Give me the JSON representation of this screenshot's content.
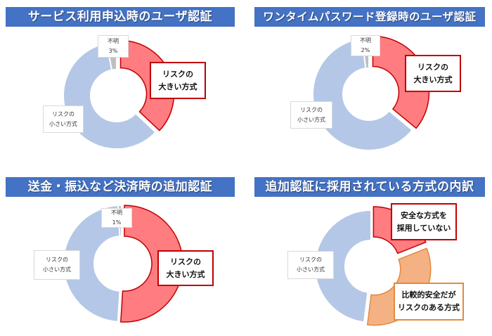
{
  "chart_data": [
    {
      "type": "pie",
      "subtype": "donut",
      "title": "サービス利用申込時のユーザ認証",
      "categories": [
        "リスクの大きい方式",
        "リスクの小さい方式",
        "不明"
      ],
      "values": [
        37,
        60,
        3
      ],
      "colors": [
        "#ff7c80",
        "#b4c7e7",
        "#bfbfbf"
      ],
      "labels": {
        "big": [
          "リスクの",
          "大きい方式"
        ],
        "small": [
          "リスクの",
          "小さい方式"
        ],
        "unknown": [
          "不明",
          "3%"
        ]
      }
    },
    {
      "type": "pie",
      "subtype": "donut",
      "title": "ワンタイムパスワード登録時のユーザ認証",
      "categories": [
        "リスクの大きい方式",
        "リスクの小さい方式",
        "不明"
      ],
      "values": [
        36,
        62,
        2
      ],
      "colors": [
        "#ff7c80",
        "#b4c7e7",
        "#bfbfbf"
      ],
      "labels": {
        "big": [
          "リスクの",
          "大きい方式"
        ],
        "small": [
          "リスクの",
          "小さい方式"
        ],
        "unknown": [
          "不明",
          "2%"
        ]
      }
    },
    {
      "type": "pie",
      "subtype": "donut",
      "title": "送金・振込など決済時の追加認証",
      "categories": [
        "リスクの大きい方式",
        "リスクの小さい方式",
        "不明"
      ],
      "values": [
        51,
        48,
        1
      ],
      "colors": [
        "#ff7c80",
        "#b4c7e7",
        "#bfbfbf"
      ],
      "labels": {
        "big": [
          "リスクの",
          "大きい方式"
        ],
        "small": [
          "リスクの",
          "小さい方式"
        ],
        "unknown": [
          "不明",
          "1%"
        ]
      }
    },
    {
      "type": "pie",
      "subtype": "donut",
      "title": "追加認証に採用されている方式の内訳",
      "categories": [
        "安全な方式を採用していない",
        "比較的安全だがリスクのある方式",
        "リスクの小さい方式"
      ],
      "values": [
        19,
        33,
        48
      ],
      "colors": [
        "#ff7c80",
        "#f4b183",
        "#b4c7e7"
      ],
      "labels": {
        "red": [
          "安全な方式を",
          "採用していない"
        ],
        "orange": [
          "比較的安全だが",
          "リスクのある方式"
        ],
        "small": [
          "リスクの",
          "小さい方式"
        ]
      }
    }
  ]
}
